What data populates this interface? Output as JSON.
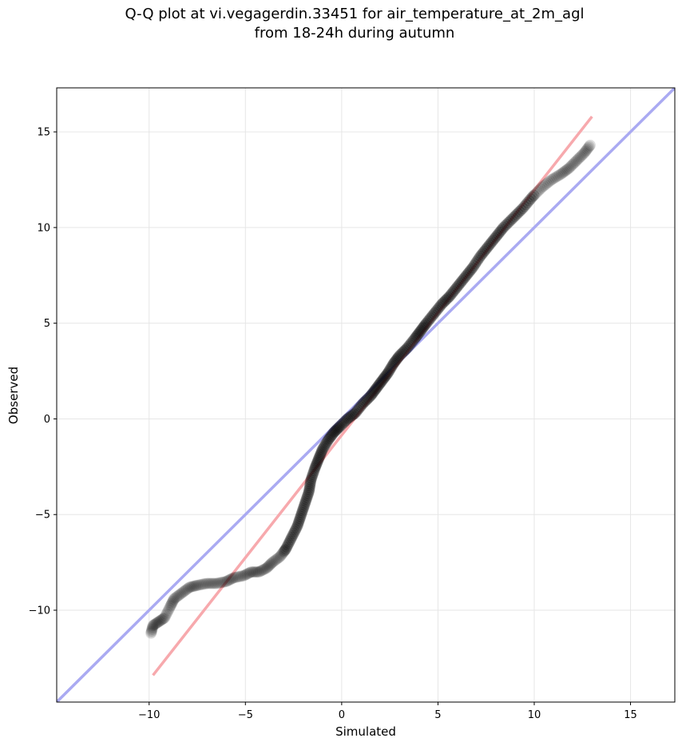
{
  "chart_data": {
    "type": "scatter",
    "title": [
      "Q-Q plot at vi.vegagerdin.33451 for air_temperature_at_2m_agl",
      "from 18-24h during autumn"
    ],
    "xlabel": "Simulated",
    "ylabel": "Observed",
    "xlim": [
      -14.8,
      17.3
    ],
    "ylim": [
      -14.8,
      17.3
    ],
    "xticks": [
      -10,
      -5,
      0,
      5,
      10,
      15
    ],
    "yticks": [
      -10,
      -5,
      0,
      5,
      10,
      15
    ],
    "xtick_labels": [
      "−10",
      "−5",
      "0",
      "5",
      "10",
      "15"
    ],
    "ytick_labels": [
      "−10",
      "−5",
      "0",
      "5",
      "10",
      "15"
    ],
    "grid": true,
    "reference_lines": [
      {
        "role": "identity",
        "color": "#aaaaf2",
        "points": [
          [
            -14.8,
            -14.8
          ],
          [
            17.3,
            17.3
          ]
        ]
      },
      {
        "role": "fit",
        "color": "#f7a9ad",
        "points": [
          [
            -9.8,
            -13.4
          ],
          [
            13.0,
            15.8
          ]
        ]
      }
    ],
    "quantiles": [
      [
        -9.9,
        -11.2
      ],
      [
        -9.8,
        -10.8
      ],
      [
        -9.5,
        -10.6
      ],
      [
        -9.2,
        -10.4
      ],
      [
        -8.9,
        -9.8
      ],
      [
        -8.7,
        -9.4
      ],
      [
        -8.3,
        -9.1
      ],
      [
        -7.9,
        -8.8
      ],
      [
        -7.5,
        -8.7
      ],
      [
        -7.0,
        -8.6
      ],
      [
        -6.5,
        -8.6
      ],
      [
        -6.0,
        -8.5
      ],
      [
        -5.6,
        -8.3
      ],
      [
        -5.1,
        -8.2
      ],
      [
        -4.7,
        -8.0
      ],
      [
        -4.3,
        -8.0
      ],
      [
        -3.9,
        -7.8
      ],
      [
        -3.6,
        -7.5
      ],
      [
        -3.2,
        -7.2
      ],
      [
        -2.9,
        -6.8
      ],
      [
        -2.6,
        -6.2
      ],
      [
        -2.3,
        -5.6
      ],
      [
        -2.1,
        -5.0
      ],
      [
        -1.9,
        -4.4
      ],
      [
        -1.7,
        -3.8
      ],
      [
        -1.6,
        -3.2
      ],
      [
        -1.4,
        -2.6
      ],
      [
        -1.2,
        -2.1
      ],
      [
        -1.0,
        -1.6
      ],
      [
        -0.7,
        -1.1
      ],
      [
        -0.4,
        -0.7
      ],
      [
        -0.1,
        -0.4
      ],
      [
        0.3,
        0.0
      ],
      [
        0.7,
        0.3
      ],
      [
        1.1,
        0.8
      ],
      [
        1.5,
        1.2
      ],
      [
        1.8,
        1.6
      ],
      [
        2.1,
        2.0
      ],
      [
        2.4,
        2.4
      ],
      [
        2.7,
        2.9
      ],
      [
        3.0,
        3.3
      ],
      [
        3.4,
        3.7
      ],
      [
        3.8,
        4.2
      ],
      [
        4.1,
        4.6
      ],
      [
        4.4,
        5.0
      ],
      [
        4.8,
        5.5
      ],
      [
        5.2,
        6.0
      ],
      [
        5.6,
        6.4
      ],
      [
        6.0,
        6.9
      ],
      [
        6.4,
        7.4
      ],
      [
        6.8,
        7.9
      ],
      [
        7.2,
        8.5
      ],
      [
        7.6,
        9.0
      ],
      [
        8.0,
        9.5
      ],
      [
        8.4,
        10.0
      ],
      [
        8.9,
        10.5
      ],
      [
        9.4,
        11.0
      ],
      [
        9.9,
        11.6
      ],
      [
        10.4,
        12.1
      ],
      [
        10.9,
        12.5
      ],
      [
        11.4,
        12.8
      ],
      [
        11.8,
        13.1
      ],
      [
        12.2,
        13.5
      ],
      [
        12.6,
        13.9
      ],
      [
        12.9,
        14.3
      ]
    ]
  }
}
